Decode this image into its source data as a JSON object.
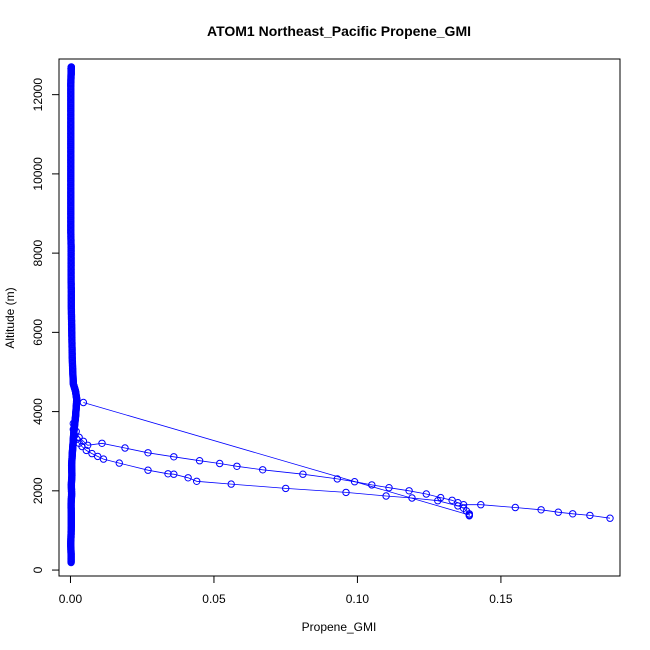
{
  "chart_data": {
    "type": "scatter",
    "title": "ATOM1 Northeast_Pacific Propene_GMI",
    "xlabel": "Propene_GMI",
    "ylabel": "Altitude (m)",
    "xlim": [
      -0.004,
      0.1915
    ],
    "ylim": [
      -150,
      12900
    ],
    "x_ticks": [
      0.0,
      0.05,
      0.1,
      0.15
    ],
    "x_tick_labels": [
      "0.00",
      "0.05",
      "0.10",
      "0.15"
    ],
    "y_ticks": [
      0,
      2000,
      4000,
      6000,
      8000,
      10000,
      12000
    ],
    "y_tick_labels": [
      "0",
      "2000",
      "4000",
      "6000",
      "8000",
      "10000",
      "12000"
    ],
    "grid": false,
    "legend": "none",
    "colors": {
      "series": "#0000ff",
      "axis": "#000000"
    },
    "marker": "open-circle",
    "connect_points": true,
    "series": [
      {
        "points": [
          [
            0.0002,
            190
          ],
          [
            0.0002,
            420
          ],
          [
            0.0001,
            650
          ],
          [
            0.0002,
            900
          ],
          [
            0.0003,
            1150
          ],
          [
            0.0003,
            1400
          ],
          [
            0.0002,
            1650
          ],
          [
            0.0004,
            1900
          ],
          [
            0.0003,
            2150
          ],
          [
            0.0005,
            2400
          ],
          [
            0.0004,
            2650
          ],
          [
            0.0006,
            2900
          ],
          [
            0.0008,
            3100
          ],
          [
            0.001,
            3300
          ],
          [
            0.0012,
            3500
          ],
          [
            0.0015,
            3700
          ],
          [
            0.0018,
            3900
          ],
          [
            0.002,
            4100
          ],
          [
            0.0022,
            4300
          ],
          [
            0.0018,
            4500
          ],
          [
            0.001,
            4700
          ],
          [
            0.0008,
            5000
          ],
          [
            0.0006,
            5400
          ],
          [
            0.0005,
            5800
          ],
          [
            0.0004,
            6200
          ],
          [
            0.0003,
            6600
          ],
          [
            0.0003,
            7000
          ],
          [
            0.0002,
            7400
          ],
          [
            0.0002,
            7800
          ],
          [
            0.0002,
            8200
          ],
          [
            0.0001,
            8600
          ],
          [
            0.0001,
            9000
          ],
          [
            0.0001,
            9400
          ],
          [
            0.0001,
            9800
          ],
          [
            0.0001,
            10200
          ],
          [
            0.0001,
            10600
          ],
          [
            0.0001,
            11000
          ],
          [
            0.0001,
            11400
          ],
          [
            0.0001,
            11800
          ],
          [
            0.0001,
            12200
          ],
          [
            0.0002,
            12500
          ],
          [
            0.0002,
            12650
          ],
          [
            0.0003,
            12700
          ]
        ]
      },
      {
        "points": [
          [
            0.0045,
            4230
          ],
          [
            0.139,
            1390
          ]
        ]
      },
      {
        "points": [
          [
            0.001,
            3700
          ],
          [
            0.002,
            3500
          ],
          [
            0.003,
            3350
          ],
          [
            0.0045,
            3250
          ],
          [
            0.006,
            3150
          ],
          [
            0.011,
            3200
          ],
          [
            0.019,
            3080
          ],
          [
            0.027,
            2960
          ],
          [
            0.036,
            2860
          ],
          [
            0.045,
            2760
          ],
          [
            0.052,
            2690
          ],
          [
            0.058,
            2620
          ],
          [
            0.067,
            2530
          ],
          [
            0.081,
            2420
          ],
          [
            0.093,
            2300
          ],
          [
            0.099,
            2230
          ],
          [
            0.105,
            2150
          ],
          [
            0.111,
            2080
          ],
          [
            0.118,
            2000
          ],
          [
            0.124,
            1920
          ],
          [
            0.129,
            1830
          ],
          [
            0.133,
            1760
          ],
          [
            0.135,
            1700
          ],
          [
            0.137,
            1650
          ],
          [
            0.143,
            1650
          ],
          [
            0.155,
            1580
          ],
          [
            0.164,
            1520
          ],
          [
            0.17,
            1460
          ],
          [
            0.175,
            1420
          ],
          [
            0.181,
            1380
          ],
          [
            0.188,
            1310
          ]
        ]
      },
      {
        "points": [
          [
            0.001,
            3550
          ],
          [
            0.0015,
            3400
          ],
          [
            0.0022,
            3300
          ],
          [
            0.003,
            3200
          ],
          [
            0.004,
            3120
          ],
          [
            0.0055,
            3020
          ],
          [
            0.0075,
            2940
          ],
          [
            0.0095,
            2870
          ],
          [
            0.0115,
            2800
          ],
          [
            0.017,
            2700
          ],
          [
            0.027,
            2520
          ],
          [
            0.034,
            2430
          ],
          [
            0.036,
            2420
          ],
          [
            0.041,
            2330
          ],
          [
            0.044,
            2240
          ],
          [
            0.056,
            2170
          ],
          [
            0.075,
            2060
          ],
          [
            0.096,
            1960
          ],
          [
            0.11,
            1870
          ],
          [
            0.119,
            1820
          ],
          [
            0.128,
            1750
          ],
          [
            0.135,
            1620
          ],
          [
            0.137,
            1560
          ],
          [
            0.138,
            1490
          ],
          [
            0.139,
            1420
          ],
          [
            0.139,
            1370
          ]
        ]
      }
    ]
  }
}
